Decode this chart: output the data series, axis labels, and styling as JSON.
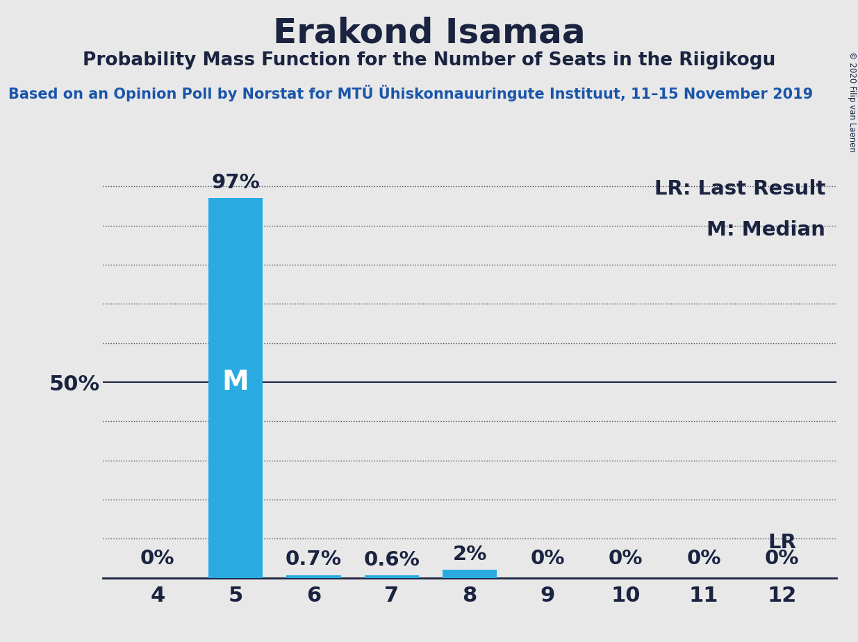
{
  "title": "Erakond Isamaa",
  "subtitle": "Probability Mass Function for the Number of Seats in the Riigikogu",
  "source_line": "Based on an Opinion Poll by Norstat for MTÜ Ühiskonnauuringute Instituut, 11–15 November 2019",
  "copyright": "© 2020 Filip van Laenen",
  "seats": [
    4,
    5,
    6,
    7,
    8,
    9,
    10,
    11,
    12
  ],
  "probabilities": [
    0.0,
    97.0,
    0.7,
    0.6,
    2.0,
    0.0,
    0.0,
    0.0,
    0.0
  ],
  "bar_color": "#29ABE2",
  "median_seat": 5,
  "lr_seat": 12,
  "background_color": "#E8E8E8",
  "text_color": "#1A2340",
  "title_fontsize": 36,
  "subtitle_fontsize": 19,
  "source_fontsize": 15,
  "axis_tick_fontsize": 22,
  "bar_label_fontsize": 21,
  "median_fontsize": 28,
  "legend_fontsize": 21,
  "ylim": [
    0,
    105
  ],
  "yticks": [
    0,
    10,
    20,
    30,
    40,
    50,
    60,
    70,
    80,
    90,
    100
  ],
  "grid_color": "#1A2340",
  "prob_labels": [
    "0%",
    "97%",
    "0.7%",
    "0.6%",
    "2%",
    "0%",
    "0%",
    "0%",
    "0%"
  ],
  "source_color": "#1A55AA",
  "solid_line_at": 50
}
